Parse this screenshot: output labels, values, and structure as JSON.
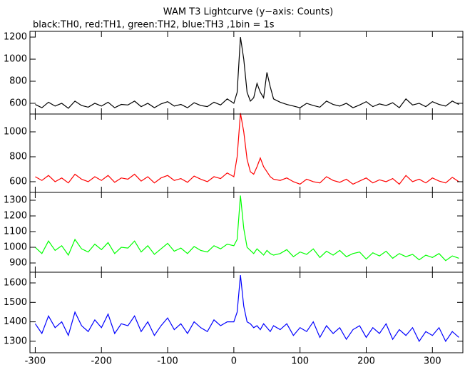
{
  "chart_data": [
    {
      "type": "line",
      "title": "WAM T3 Lightcurve (y−axis: Counts)",
      "subtitle": "black:TH0, red:TH1, green:TH2, blue:TH3 ,1bin = 1s",
      "color": "#000000",
      "x": [
        -300,
        -290,
        -280,
        -270,
        -260,
        -250,
        -240,
        -230,
        -220,
        -210,
        -200,
        -190,
        -180,
        -170,
        -160,
        -150,
        -140,
        -130,
        -120,
        -110,
        -100,
        -90,
        -80,
        -70,
        -60,
        -50,
        -40,
        -30,
        -20,
        -10,
        0,
        5,
        10,
        15,
        20,
        25,
        30,
        35,
        40,
        45,
        50,
        55,
        60,
        70,
        80,
        90,
        100,
        110,
        120,
        130,
        140,
        150,
        160,
        170,
        180,
        190,
        200,
        210,
        220,
        230,
        240,
        250,
        260,
        270,
        280,
        290,
        300,
        310,
        320,
        330,
        340
      ],
      "values": [
        590,
        560,
        610,
        575,
        600,
        555,
        620,
        580,
        565,
        600,
        575,
        610,
        560,
        590,
        585,
        620,
        570,
        600,
        560,
        595,
        615,
        575,
        590,
        560,
        605,
        580,
        570,
        610,
        585,
        640,
        600,
        700,
        1200,
        1000,
        700,
        620,
        650,
        780,
        700,
        650,
        880,
        750,
        640,
        610,
        590,
        575,
        560,
        600,
        580,
        565,
        620,
        590,
        575,
        600,
        560,
        585,
        615,
        570,
        595,
        580,
        605,
        560,
        640,
        585,
        600,
        570,
        615,
        590,
        575,
        620,
        590
      ],
      "xlim": [
        -308,
        346
      ],
      "ylim": [
        503,
        1252
      ],
      "yticks": [
        600,
        800,
        1000,
        1200
      ]
    },
    {
      "type": "line",
      "color": "#ff0000",
      "x": [
        -300,
        -290,
        -280,
        -270,
        -260,
        -250,
        -240,
        -230,
        -220,
        -210,
        -200,
        -190,
        -180,
        -170,
        -160,
        -150,
        -140,
        -130,
        -120,
        -110,
        -100,
        -90,
        -80,
        -70,
        -60,
        -50,
        -40,
        -30,
        -20,
        -10,
        0,
        5,
        10,
        15,
        20,
        25,
        30,
        35,
        40,
        45,
        50,
        55,
        60,
        70,
        80,
        90,
        100,
        110,
        120,
        130,
        140,
        150,
        160,
        170,
        180,
        190,
        200,
        210,
        220,
        230,
        240,
        250,
        260,
        270,
        280,
        290,
        300,
        310,
        320,
        330,
        340
      ],
      "values": [
        640,
        610,
        650,
        600,
        630,
        590,
        660,
        620,
        600,
        640,
        610,
        650,
        595,
        630,
        620,
        660,
        605,
        640,
        590,
        630,
        650,
        610,
        625,
        595,
        645,
        620,
        600,
        640,
        625,
        670,
        640,
        800,
        1150,
        1000,
        780,
        680,
        660,
        720,
        790,
        720,
        680,
        640,
        620,
        610,
        630,
        600,
        580,
        620,
        600,
        590,
        640,
        610,
        595,
        620,
        580,
        605,
        630,
        590,
        615,
        600,
        625,
        580,
        650,
        600,
        620,
        590,
        630,
        605,
        590,
        635,
        600
      ],
      "xlim": [
        -308,
        346
      ],
      "ylim": [
        514,
        1143
      ],
      "yticks": [
        600,
        800,
        1000
      ]
    },
    {
      "type": "line",
      "color": "#00ff00",
      "x": [
        -300,
        -290,
        -280,
        -270,
        -260,
        -250,
        -240,
        -230,
        -220,
        -210,
        -200,
        -190,
        -180,
        -170,
        -160,
        -150,
        -140,
        -130,
        -120,
        -110,
        -100,
        -90,
        -80,
        -70,
        -60,
        -50,
        -40,
        -30,
        -20,
        -10,
        0,
        5,
        10,
        15,
        20,
        25,
        30,
        35,
        40,
        45,
        50,
        55,
        60,
        70,
        80,
        90,
        100,
        110,
        120,
        130,
        140,
        150,
        160,
        170,
        180,
        190,
        200,
        210,
        220,
        230,
        240,
        250,
        260,
        270,
        280,
        290,
        300,
        310,
        320,
        330,
        340
      ],
      "values": [
        1000,
        960,
        1040,
        980,
        1010,
        950,
        1050,
        990,
        970,
        1020,
        985,
        1030,
        960,
        1000,
        995,
        1040,
        970,
        1010,
        955,
        990,
        1025,
        975,
        995,
        960,
        1005,
        980,
        970,
        1010,
        990,
        1020,
        1010,
        1050,
        1330,
        1120,
        1000,
        980,
        960,
        990,
        970,
        950,
        980,
        960,
        950,
        960,
        985,
        940,
        970,
        955,
        990,
        935,
        975,
        950,
        980,
        940,
        960,
        970,
        925,
        965,
        945,
        975,
        930,
        960,
        940,
        955,
        920,
        950,
        935,
        960,
        915,
        945,
        930
      ],
      "xlim": [
        -308,
        346
      ],
      "ylim": [
        841,
        1350
      ],
      "yticks": [
        900,
        1000,
        1100,
        1200,
        1300
      ]
    },
    {
      "type": "line",
      "color": "#0000ff",
      "x": [
        -300,
        -290,
        -280,
        -270,
        -260,
        -250,
        -240,
        -230,
        -220,
        -210,
        -200,
        -190,
        -180,
        -170,
        -160,
        -150,
        -140,
        -130,
        -120,
        -110,
        -100,
        -90,
        -80,
        -70,
        -60,
        -50,
        -40,
        -30,
        -20,
        -10,
        0,
        5,
        10,
        15,
        20,
        25,
        30,
        35,
        40,
        45,
        50,
        55,
        60,
        70,
        80,
        90,
        100,
        110,
        120,
        130,
        140,
        150,
        160,
        170,
        180,
        190,
        200,
        210,
        220,
        230,
        240,
        250,
        260,
        270,
        280,
        290,
        300,
        310,
        320,
        330,
        340
      ],
      "values": [
        1390,
        1340,
        1430,
        1370,
        1400,
        1330,
        1450,
        1380,
        1350,
        1410,
        1370,
        1440,
        1340,
        1390,
        1380,
        1430,
        1350,
        1400,
        1330,
        1380,
        1420,
        1360,
        1390,
        1340,
        1400,
        1370,
        1350,
        1410,
        1380,
        1400,
        1400,
        1450,
        1640,
        1480,
        1400,
        1390,
        1370,
        1380,
        1360,
        1390,
        1370,
        1350,
        1380,
        1360,
        1390,
        1330,
        1370,
        1350,
        1400,
        1320,
        1380,
        1340,
        1370,
        1310,
        1360,
        1380,
        1320,
        1370,
        1340,
        1390,
        1310,
        1360,
        1330,
        1370,
        1300,
        1350,
        1330,
        1370,
        1300,
        1350,
        1320
      ],
      "xlim": [
        -308,
        346
      ],
      "ylim": [
        1241,
        1655
      ],
      "yticks": [
        1300,
        1400,
        1500,
        1600
      ],
      "xticks": [
        -300,
        -200,
        -100,
        0,
        100,
        200,
        300
      ]
    }
  ]
}
